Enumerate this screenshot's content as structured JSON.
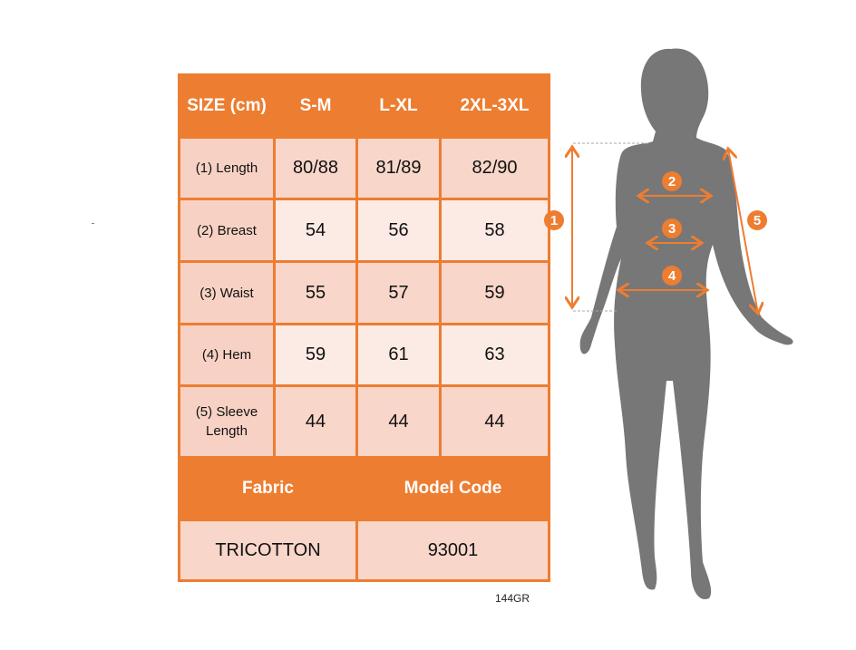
{
  "table": {
    "header": [
      "SIZE (cm)",
      "S-M",
      "L-XL",
      "2XL-3XL"
    ],
    "rows": [
      {
        "label": "(1) Length",
        "values": [
          "80/88",
          "81/89",
          "82/90"
        ]
      },
      {
        "label": "(2) Breast",
        "values": [
          "54",
          "56",
          "58"
        ]
      },
      {
        "label": "(3) Waist",
        "values": [
          "55",
          "57",
          "59"
        ]
      },
      {
        "label": "(4) Hem",
        "values": [
          "59",
          "61",
          "63"
        ]
      },
      {
        "label": "(5) Sleeve Length",
        "values": [
          "44",
          "44",
          "44"
        ]
      }
    ],
    "fabric_header": "Fabric",
    "model_code_header": "Model Code",
    "fabric": "TRICOTTON",
    "model_code": "93001"
  },
  "code": "144GR",
  "markers": [
    "1",
    "2",
    "3",
    "4",
    "5"
  ],
  "colors": {
    "accent": "#ED7D31",
    "silhouette": "#777777",
    "row_dark": "#F8D6CA",
    "row_light": "#FCEAE4"
  }
}
